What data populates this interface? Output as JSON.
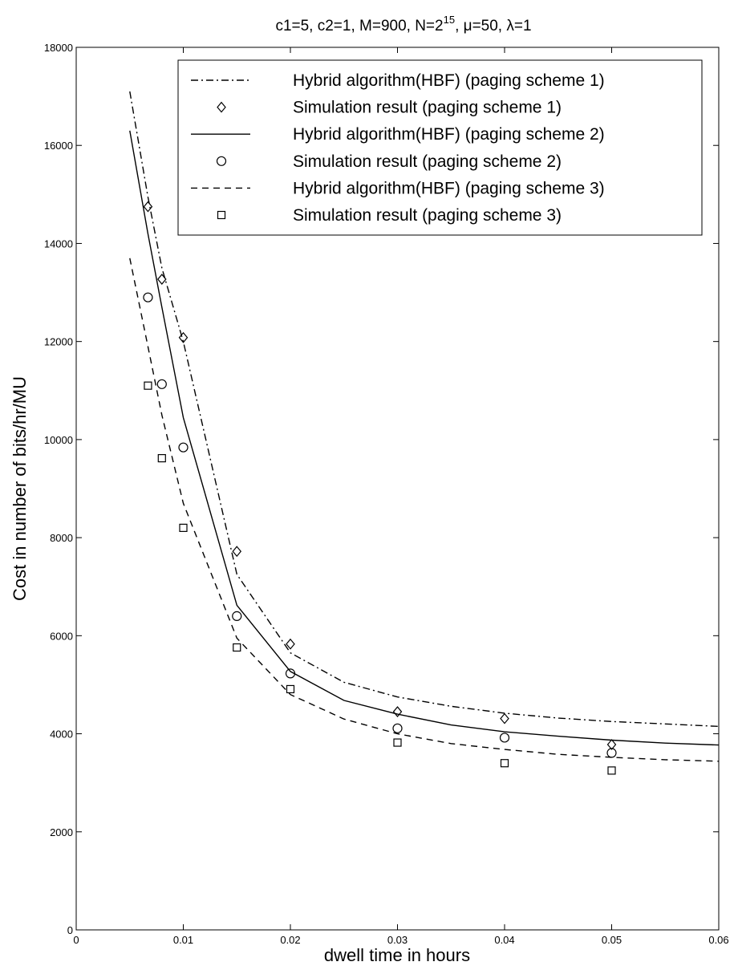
{
  "chart_data": {
    "type": "line",
    "title_parts": {
      "prefix": "c1=5, c2=1, M=900, N=2",
      "exponent": "15",
      "suffix": ", μ=50, λ=1"
    },
    "xlabel": "dwell time in hours",
    "ylabel": "Cost in number of bits/hr/MU",
    "xlim": [
      0,
      0.06
    ],
    "ylim": [
      0,
      18000
    ],
    "xticks": [
      0,
      0.01,
      0.02,
      0.03,
      0.04,
      0.05,
      0.06
    ],
    "xtick_labels": [
      "0",
      "0.01",
      "0.02",
      "0.03",
      "0.04",
      "0.05",
      "0.06"
    ],
    "yticks": [
      0,
      2000,
      4000,
      6000,
      8000,
      10000,
      12000,
      14000,
      16000,
      18000
    ],
    "ytick_labels": [
      "0",
      "2000",
      "4000",
      "6000",
      "8000",
      "10000",
      "12000",
      "14000",
      "16000",
      "18000"
    ],
    "grid": false,
    "legend_position": "top-right",
    "series": [
      {
        "name": "Hybrid algorithm(HBF) (paging scheme 1)",
        "kind": "line",
        "dash": "dashdot",
        "color": "#000000",
        "x": [
          0.005,
          0.0067,
          0.008,
          0.01,
          0.015,
          0.02,
          0.025,
          0.03,
          0.035,
          0.04,
          0.045,
          0.05,
          0.055,
          0.06
        ],
        "y": [
          17100,
          14950,
          13500,
          12000,
          7250,
          5650,
          5050,
          4750,
          4560,
          4420,
          4320,
          4250,
          4200,
          4150
        ]
      },
      {
        "name": "Simulation result (paging scheme 1)",
        "kind": "marker",
        "marker": "diamond",
        "color": "#000000",
        "x": [
          0.0067,
          0.008,
          0.01,
          0.015,
          0.02,
          0.03,
          0.04,
          0.05
        ],
        "y": [
          14750,
          13270,
          12080,
          7720,
          5830,
          4450,
          4310,
          3780
        ]
      },
      {
        "name": "Hybrid algorithm(HBF) (paging scheme 2)",
        "kind": "line",
        "dash": "solid",
        "color": "#000000",
        "x": [
          0.005,
          0.0067,
          0.008,
          0.01,
          0.015,
          0.02,
          0.025,
          0.03,
          0.035,
          0.04,
          0.045,
          0.05,
          0.055,
          0.06
        ],
        "y": [
          16300,
          14200,
          12700,
          10450,
          6620,
          5270,
          4680,
          4400,
          4180,
          4040,
          3950,
          3870,
          3810,
          3770
        ]
      },
      {
        "name": "Simulation result (paging scheme 2)",
        "kind": "marker",
        "marker": "circle",
        "color": "#000000",
        "x": [
          0.0067,
          0.008,
          0.01,
          0.015,
          0.02,
          0.03,
          0.04,
          0.05
        ],
        "y": [
          12900,
          11130,
          9840,
          6400,
          5230,
          4110,
          3920,
          3610
        ]
      },
      {
        "name": "Hybrid algorithm(HBF) (paging scheme 3)",
        "kind": "line",
        "dash": "dashed",
        "color": "#000000",
        "x": [
          0.005,
          0.0067,
          0.008,
          0.01,
          0.015,
          0.02,
          0.025,
          0.03,
          0.035,
          0.04,
          0.045,
          0.05,
          0.055,
          0.06
        ],
        "y": [
          13700,
          11900,
          10500,
          8700,
          5950,
          4800,
          4300,
          4000,
          3800,
          3680,
          3580,
          3520,
          3470,
          3440
        ]
      },
      {
        "name": "Simulation result (paging scheme 3)",
        "kind": "marker",
        "marker": "square",
        "color": "#000000",
        "x": [
          0.0067,
          0.008,
          0.01,
          0.015,
          0.02,
          0.03,
          0.04,
          0.05
        ],
        "y": [
          11100,
          9620,
          8200,
          5760,
          4910,
          3820,
          3400,
          3250
        ]
      }
    ]
  }
}
